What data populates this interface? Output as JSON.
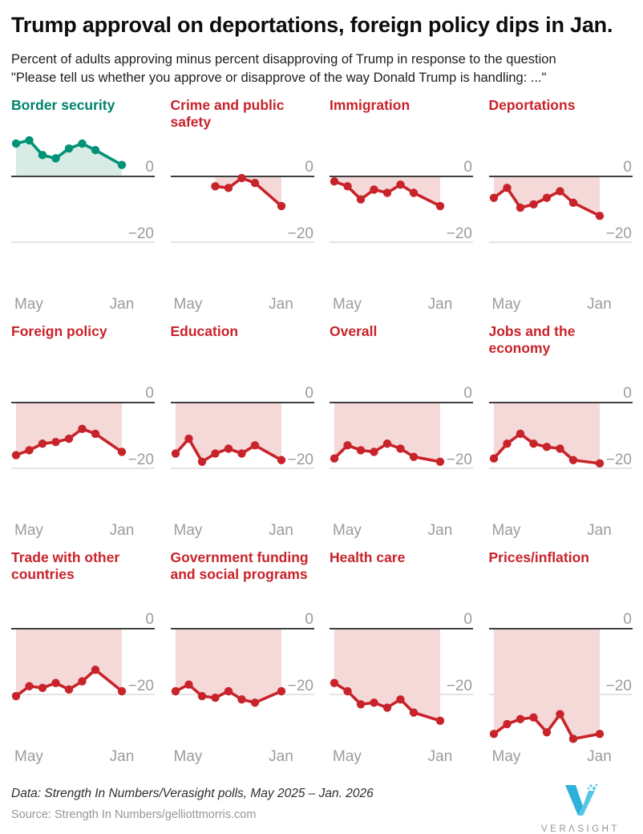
{
  "header": {
    "title": "Trump approval on deportations, foreign policy dips in Jan.",
    "subtitle_line1": "Percent of adults approving minus percent disapproving of Trump in response to the question",
    "subtitle_line2": "\"Please tell us whether you approve or disapprove of the way Donald Trump is handling: ...\""
  },
  "colors": {
    "teal_title": "#00836a",
    "teal_line": "#009377",
    "teal_fill": "#d8ebe4",
    "red_title": "#c8232a",
    "red_line": "#c8232a",
    "red_fill": "#f5d9d8",
    "zero_line": "#3f3f3f",
    "grid_line": "#dcdcdc",
    "axis_label": "#9c9c9c"
  },
  "axis": {
    "y_zero_label": "0",
    "y_minus20_label": "−20",
    "x_left_label": "May",
    "x_right_label": "Jan",
    "ylim": [
      -35,
      13
    ],
    "x_slot_count": 9
  },
  "chart_data": [
    {
      "type": "line",
      "title": "Border security",
      "theme": "teal",
      "slots": [
        0,
        1,
        2,
        3,
        4,
        5,
        6,
        8
      ],
      "values": [
        10,
        11,
        6.5,
        5.5,
        8.5,
        10,
        8,
        3.5
      ]
    },
    {
      "type": "line",
      "title": "Crime and public safety",
      "theme": "red",
      "slots": [
        3,
        4,
        5,
        6,
        8
      ],
      "values": [
        -3,
        -3.5,
        -0.5,
        -2,
        -9
      ]
    },
    {
      "type": "line",
      "title": "Immigration",
      "theme": "red",
      "slots": [
        0,
        1,
        2,
        3,
        4,
        5,
        6,
        8
      ],
      "values": [
        -1.5,
        -3,
        -7,
        -4,
        -5,
        -2.5,
        -5,
        -9
      ]
    },
    {
      "type": "line",
      "title": "Deportations",
      "theme": "red",
      "slots": [
        0,
        1,
        2,
        3,
        4,
        5,
        6,
        8
      ],
      "values": [
        -6.5,
        -3.5,
        -9.5,
        -8.5,
        -6.5,
        -4.5,
        -8,
        -12
      ]
    },
    {
      "type": "line",
      "title": "Foreign policy",
      "theme": "red",
      "slots": [
        0,
        1,
        2,
        3,
        4,
        5,
        6,
        8
      ],
      "values": [
        -16,
        -14.5,
        -12.5,
        -12,
        -11,
        -8,
        -9.5,
        -15
      ]
    },
    {
      "type": "line",
      "title": "Education",
      "theme": "red",
      "slots": [
        0,
        1,
        2,
        3,
        4,
        5,
        6,
        8
      ],
      "values": [
        -15.5,
        -11,
        -18,
        -15.5,
        -14,
        -15.5,
        -13,
        -17.5
      ]
    },
    {
      "type": "line",
      "title": "Overall",
      "theme": "red",
      "slots": [
        0,
        1,
        2,
        3,
        4,
        5,
        6,
        8
      ],
      "values": [
        -17,
        -13,
        -14.5,
        -15,
        -12.5,
        -14,
        -16.5,
        -18
      ]
    },
    {
      "type": "line",
      "title": "Jobs and the economy",
      "theme": "red",
      "slots": [
        0,
        1,
        2,
        3,
        4,
        5,
        6,
        8
      ],
      "values": [
        -17,
        -12.5,
        -9.5,
        -12.5,
        -13.5,
        -14,
        -17.5,
        -18.5
      ]
    },
    {
      "type": "line",
      "title": "Trade with other countries",
      "theme": "red",
      "slots": [
        0,
        1,
        2,
        3,
        4,
        5,
        6,
        8
      ],
      "values": [
        -20.5,
        -17.5,
        -18,
        -16.5,
        -18.5,
        -16,
        -12.5,
        -19
      ]
    },
    {
      "type": "line",
      "title": "Government funding and social programs",
      "theme": "red",
      "slots": [
        0,
        1,
        2,
        3,
        4,
        5,
        6,
        8
      ],
      "values": [
        -19,
        -17,
        -20.5,
        -21,
        -19,
        -21.5,
        -22.5,
        -19
      ]
    },
    {
      "type": "line",
      "title": "Health care",
      "theme": "red",
      "slots": [
        0,
        1,
        2,
        3,
        4,
        5,
        6,
        8
      ],
      "values": [
        -16.5,
        -19,
        -23,
        -22.5,
        -24,
        -21.5,
        -25.5,
        -28
      ]
    },
    {
      "type": "line",
      "title": "Prices/inflation",
      "theme": "red",
      "slots": [
        0,
        1,
        2,
        3,
        4,
        5,
        6,
        8
      ],
      "values": [
        -32,
        -29,
        -27.5,
        -27,
        -31.5,
        -26,
        -33.5,
        -32
      ]
    }
  ],
  "footer": {
    "data_line": "Data: Strength In Numbers/Verasight polls, May 2025 – Jan. 2026",
    "source_line": "Source: Strength In Numbers/gelliottmorris.com",
    "logo_text": "VERΛSIGHT"
  }
}
